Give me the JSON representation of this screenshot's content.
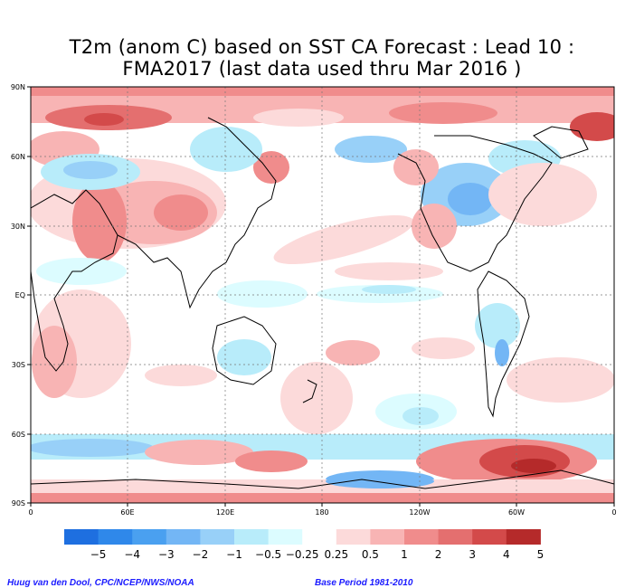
{
  "title_line1": "T2m (anom C) based on SST CA Forecast : Lead 10 :",
  "title_line2": "FMA2017 (last data used thru Mar 2016 )",
  "y_ticks": [
    "90N",
    "60N",
    "30N",
    "EQ",
    "30S",
    "60S",
    "90S"
  ],
  "x_ticks": [
    "0",
    "60E",
    "120E",
    "180",
    "120W",
    "60W",
    "0"
  ],
  "colorbar": {
    "labels": [
      "−5",
      "−4",
      "−3",
      "−2",
      "−1",
      "−0.5",
      "−0.25",
      "0.25",
      "0.5",
      "1",
      "2",
      "3",
      "4",
      "5"
    ],
    "colors": [
      "#1e6fe0",
      "#2f88ea",
      "#4aa0f0",
      "#73b6f5",
      "#98d0f8",
      "#b8ecfa",
      "#dcfcff",
      "#ffffff",
      "#fcdada",
      "#f8b4b4",
      "#f08c8c",
      "#e46f6f",
      "#d34a4a",
      "#b52a2a"
    ]
  },
  "credit": "Huug van den Dool, CPC/NCEP/NWS/NOAA",
  "base_period": "Base Period 1981-2010"
}
